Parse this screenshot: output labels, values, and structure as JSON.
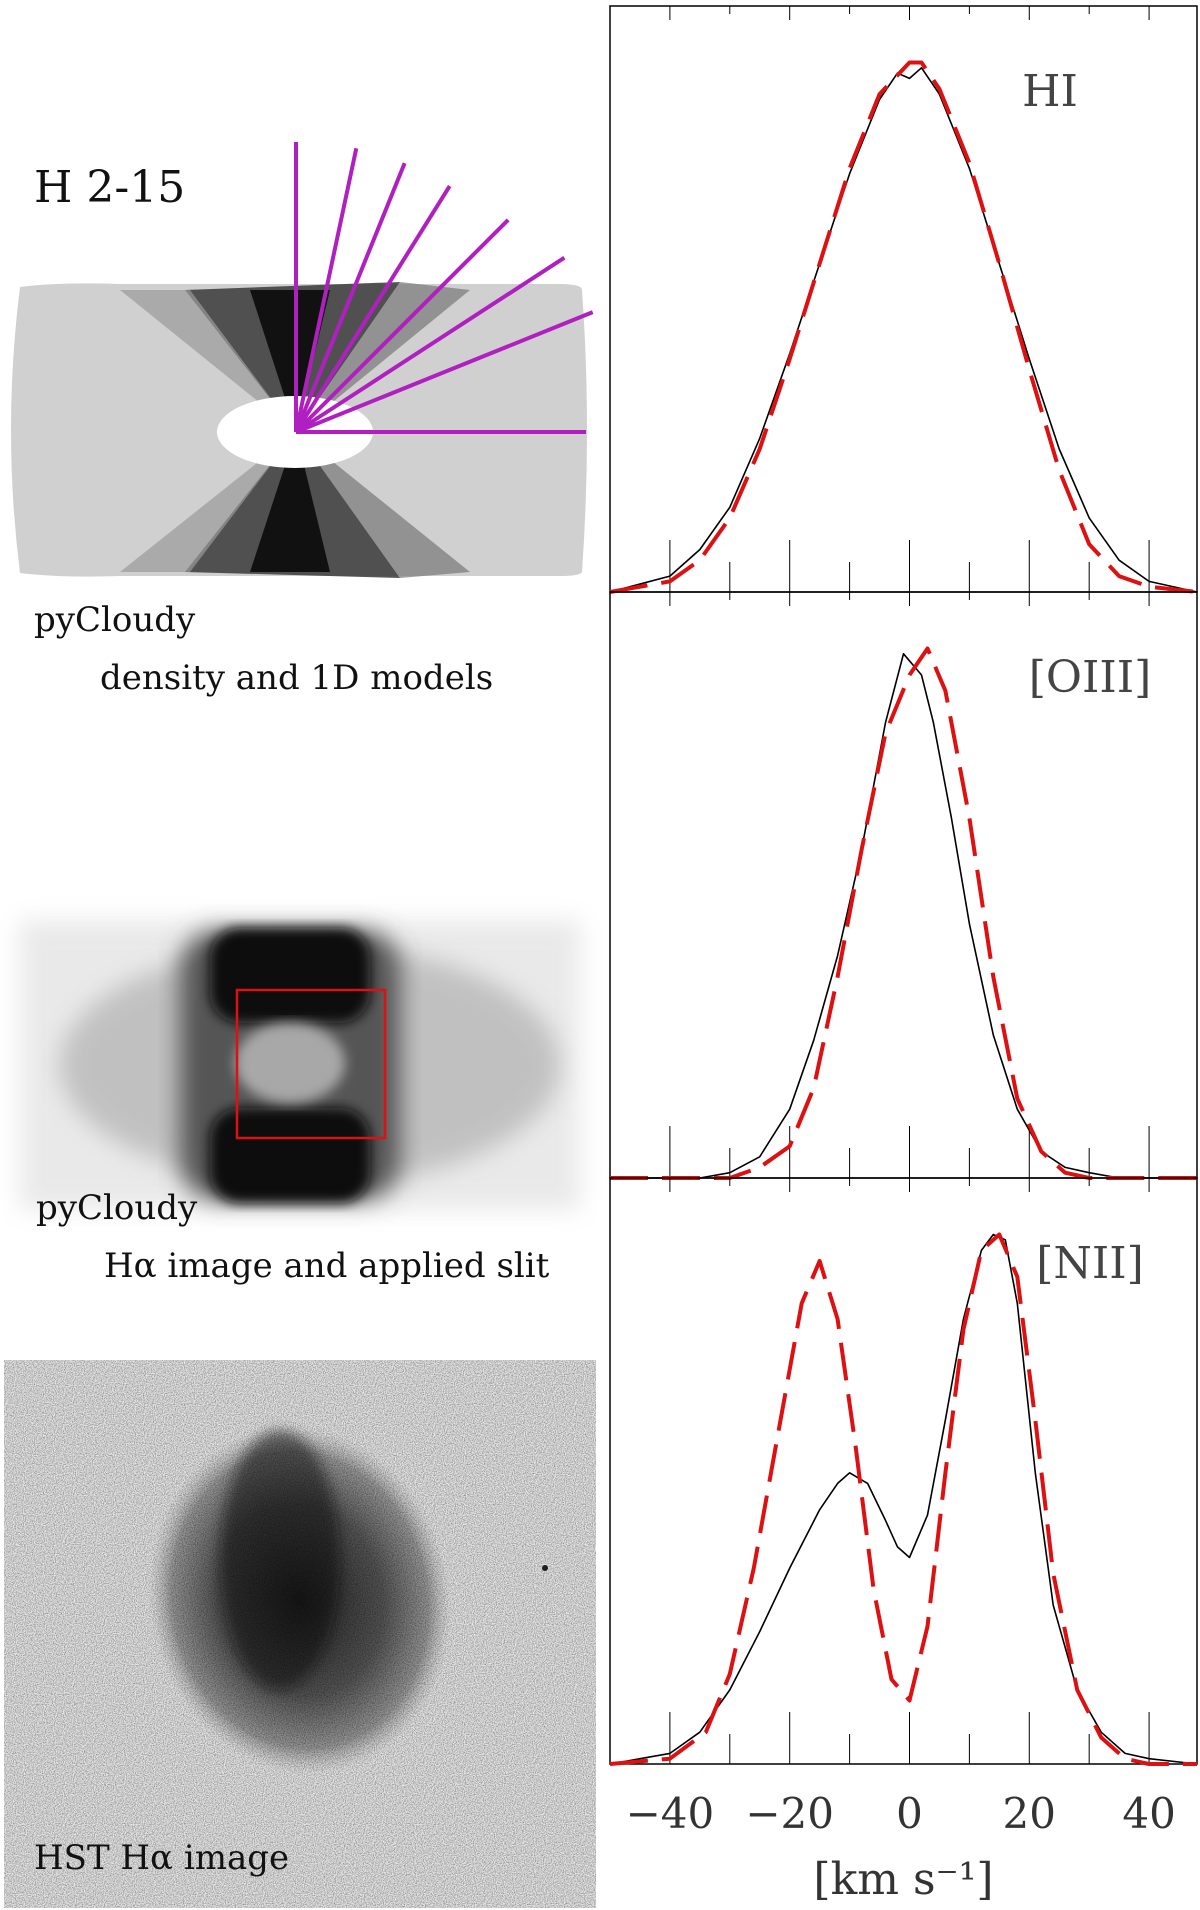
{
  "figure": {
    "title": "H 2-15",
    "panel1": {
      "line1": "pyCloudy",
      "line2": "density and 1D models"
    },
    "panel2": {
      "line1": "pyCloudy",
      "line2": "Hα image and applied slit"
    },
    "panel3": {
      "line1": "HST Hα image"
    }
  },
  "colors": {
    "observed": "#000000",
    "model": "#dd1111",
    "radial_lines": "#b020c0",
    "slit": "#dd1111"
  },
  "chart_data": [
    {
      "type": "line",
      "label": "HI",
      "xlim": [
        -50,
        48
      ],
      "ylim": [
        0,
        1.05
      ],
      "x_ticks": [
        -40,
        -20,
        0,
        20,
        40
      ],
      "series": [
        {
          "style": "solid",
          "color": "#000000",
          "x": [
            -50,
            -40,
            -35,
            -30,
            -25,
            -20,
            -15,
            -10,
            -5,
            -2,
            0,
            2,
            5,
            10,
            15,
            20,
            25,
            30,
            35,
            40,
            48
          ],
          "y": [
            0.0,
            0.03,
            0.08,
            0.16,
            0.29,
            0.45,
            0.62,
            0.79,
            0.93,
            0.98,
            0.97,
            0.99,
            0.94,
            0.8,
            0.62,
            0.44,
            0.27,
            0.14,
            0.06,
            0.02,
            0.0
          ]
        },
        {
          "style": "dashed",
          "color": "#dd1111",
          "x": [
            -50,
            -40,
            -35,
            -30,
            -25,
            -20,
            -15,
            -10,
            -5,
            0,
            2,
            5,
            10,
            15,
            20,
            25,
            30,
            35,
            40,
            48
          ],
          "y": [
            0.0,
            0.02,
            0.06,
            0.14,
            0.27,
            0.44,
            0.62,
            0.8,
            0.94,
            1.0,
            1.0,
            0.95,
            0.81,
            0.62,
            0.42,
            0.23,
            0.09,
            0.03,
            0.01,
            0.0
          ]
        }
      ]
    },
    {
      "type": "line",
      "label": "[OIII]",
      "xlim": [
        -50,
        48
      ],
      "ylim": [
        0,
        1.05
      ],
      "x_ticks": [
        -40,
        -20,
        0,
        20,
        40
      ],
      "series": [
        {
          "style": "solid",
          "color": "#000000",
          "x": [
            -50,
            -35,
            -30,
            -25,
            -20,
            -16,
            -12,
            -8,
            -4,
            -1,
            2,
            4,
            7,
            10,
            14,
            18,
            22,
            26,
            30,
            35,
            48
          ],
          "y": [
            0.0,
            0.0,
            0.01,
            0.04,
            0.13,
            0.26,
            0.42,
            0.62,
            0.86,
            0.99,
            0.95,
            0.86,
            0.68,
            0.48,
            0.27,
            0.13,
            0.05,
            0.02,
            0.01,
            0.0,
            0.0
          ]
        },
        {
          "style": "dashed",
          "color": "#dd1111",
          "x": [
            -50,
            -35,
            -30,
            -25,
            -20,
            -16,
            -12,
            -8,
            -4,
            0,
            3,
            6,
            10,
            14,
            18,
            22,
            26,
            30,
            35,
            48
          ],
          "y": [
            0.0,
            0.0,
            0.0,
            0.02,
            0.06,
            0.17,
            0.38,
            0.62,
            0.84,
            0.95,
            1.0,
            0.92,
            0.68,
            0.38,
            0.15,
            0.05,
            0.01,
            0.0,
            0.0,
            0.0
          ]
        }
      ]
    },
    {
      "type": "line",
      "label": "[NII]",
      "xlim": [
        -50,
        48
      ],
      "ylim": [
        0,
        1.05
      ],
      "x_ticks": [
        -40,
        -20,
        0,
        20,
        40
      ],
      "x_tick_labels": [
        "−40",
        "−20",
        "0",
        "20",
        "40"
      ],
      "xlabel": "[km s⁻¹]",
      "series": [
        {
          "style": "solid",
          "color": "#000000",
          "x": [
            -50,
            -40,
            -35,
            -30,
            -25,
            -20,
            -15,
            -12,
            -10,
            -7,
            -4,
            -2,
            0,
            3,
            6,
            9,
            12,
            14,
            16,
            18,
            21,
            24,
            28,
            32,
            36,
            40,
            48
          ],
          "y": [
            0.0,
            0.02,
            0.06,
            0.14,
            0.25,
            0.37,
            0.48,
            0.53,
            0.55,
            0.53,
            0.46,
            0.41,
            0.39,
            0.47,
            0.65,
            0.84,
            0.97,
            1.0,
            0.99,
            0.87,
            0.55,
            0.3,
            0.14,
            0.06,
            0.02,
            0.01,
            0.0
          ]
        },
        {
          "style": "dashed",
          "color": "#dd1111",
          "x": [
            -50,
            -40,
            -34,
            -30,
            -26,
            -22,
            -18,
            -15,
            -12,
            -9,
            -6,
            -3,
            0,
            3,
            6,
            9,
            12,
            15,
            18,
            21,
            24,
            28,
            32,
            36,
            40,
            48
          ],
          "y": [
            0.0,
            0.01,
            0.06,
            0.17,
            0.37,
            0.62,
            0.87,
            0.95,
            0.84,
            0.6,
            0.33,
            0.16,
            0.12,
            0.26,
            0.55,
            0.82,
            0.97,
            1.0,
            0.92,
            0.65,
            0.36,
            0.14,
            0.05,
            0.01,
            0.0,
            0.0
          ]
        }
      ]
    }
  ]
}
